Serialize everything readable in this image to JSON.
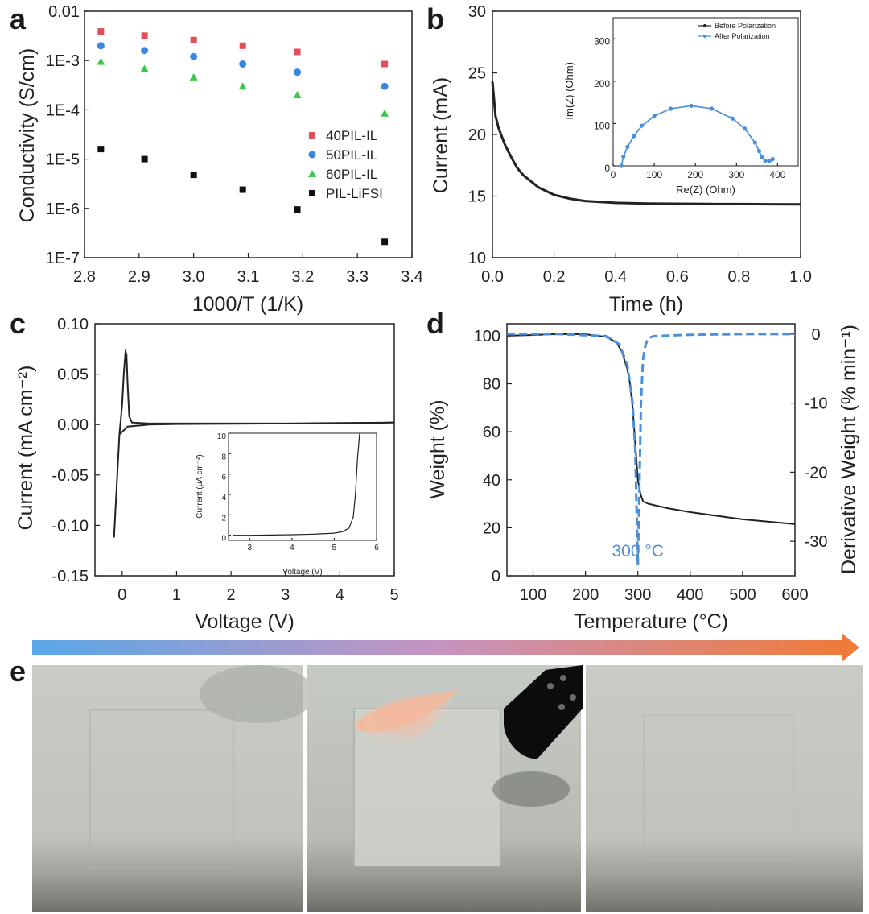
{
  "panels": {
    "a": "a",
    "b": "b",
    "c": "c",
    "d": "d",
    "e": "e"
  },
  "chart_data": [
    {
      "id": "a",
      "type": "scatter",
      "xlabel": "1000/T (1/K)",
      "ylabel": "Conductivity (S/cm)",
      "xlim": [
        2.8,
        3.4
      ],
      "ylim_log10": [
        -7,
        -2
      ],
      "yscale": "log",
      "xticks": [
        "2.8",
        "2.9",
        "3.0",
        "3.1",
        "3.2",
        "3.3",
        "3.4"
      ],
      "yticks": [
        "0.01",
        "1E-3",
        "1E-4",
        "1E-5",
        "1E-6",
        "1E-7"
      ],
      "legend_position": "right",
      "x": [
        2.83,
        2.91,
        3.0,
        3.09,
        3.19,
        3.35
      ],
      "series": [
        {
          "name": "40PIL-IL",
          "color": "#e0505a",
          "marker": "square",
          "values": [
            0.0039,
            0.0032,
            0.0026,
            0.002,
            0.0015,
            0.00085
          ]
        },
        {
          "name": "50PIL-IL",
          "color": "#3a86e0",
          "marker": "circle",
          "values": [
            0.002,
            0.0016,
            0.0012,
            0.00085,
            0.00058,
            0.0003
          ]
        },
        {
          "name": "60PIL-IL",
          "color": "#3cc84a",
          "marker": "triangle",
          "values": [
            0.00095,
            0.00068,
            0.00046,
            0.0003,
            0.0002,
            8.5e-05
          ]
        },
        {
          "name": "PIL-LiFSI",
          "color": "#111111",
          "marker": "square",
          "values": [
            1.6e-05,
            1e-05,
            4.8e-06,
            2.4e-06,
            9.5e-07,
            2.1e-07
          ]
        }
      ]
    },
    {
      "id": "b",
      "type": "line",
      "xlabel": "Time (h)",
      "ylabel": "Current (mA)",
      "xlim": [
        0,
        1.0
      ],
      "ylim": [
        10,
        30
      ],
      "xticks": [
        "0.0",
        "0.2",
        "0.4",
        "0.6",
        "0.8",
        "1.0"
      ],
      "yticks": [
        "10",
        "15",
        "20",
        "25",
        "30"
      ],
      "series": [
        {
          "name": "",
          "color": "#222222",
          "x": [
            0,
            0.01,
            0.02,
            0.04,
            0.06,
            0.08,
            0.1,
            0.15,
            0.2,
            0.25,
            0.3,
            0.4,
            0.5,
            0.6,
            0.7,
            0.8,
            0.9,
            1.0
          ],
          "values": [
            24.3,
            21.5,
            20.5,
            19.2,
            18.2,
            17.3,
            16.7,
            15.7,
            15.1,
            14.8,
            14.6,
            14.45,
            14.4,
            14.38,
            14.36,
            14.35,
            14.34,
            14.33
          ]
        }
      ],
      "inset": {
        "type": "line",
        "xlabel": "Re(Z) (Ohm)",
        "ylabel": "-Im(Z) (Ohm)",
        "xlim": [
          0,
          450
        ],
        "ylim": [
          0,
          350
        ],
        "xticks": [
          "0",
          "100",
          "200",
          "300",
          "400"
        ],
        "yticks": [
          "0",
          "100",
          "200",
          "300"
        ],
        "legend_position": "top-right",
        "series": [
          {
            "name": "Before Polarization",
            "color": "#222222",
            "x": [
              20,
              25,
              35,
              50,
              70,
              100,
              140,
              190,
              240,
              290,
              320,
              345,
              355,
              362,
              370,
              380,
              388
            ],
            "values": [
              0,
              22,
              45,
              70,
              95,
              118,
              135,
              142,
              135,
              112,
              88,
              55,
              35,
              20,
              12,
              12,
              16
            ]
          },
          {
            "name": "After Polarization",
            "color": "#4a90d9",
            "x": [
              20,
              25,
              35,
              50,
              70,
              100,
              140,
              190,
              240,
              290,
              320,
              345,
              355,
              362,
              370,
              380,
              388
            ],
            "values": [
              0,
              22,
              45,
              70,
              95,
              118,
              135,
              142,
              135,
              112,
              88,
              55,
              35,
              20,
              12,
              12,
              16
            ]
          }
        ]
      }
    },
    {
      "id": "c",
      "type": "line",
      "xlabel": "Voltage (V)",
      "ylabel": "Current (mA cm⁻²)",
      "xlim": [
        -0.5,
        5.0
      ],
      "ylim": [
        -0.15,
        0.1
      ],
      "xticks": [
        "0",
        "1",
        "2",
        "3",
        "4",
        "5"
      ],
      "yticks": [
        "0.10",
        "0.05",
        "0.00",
        "-0.05",
        "-0.10",
        "-0.15"
      ],
      "series": [
        {
          "name": "",
          "color": "#222222",
          "x": [
            -0.15,
            -0.05,
            0.0,
            0.03,
            0.06,
            0.08,
            0.1,
            0.13,
            0.18,
            0.5,
            1,
            2,
            3,
            4,
            5,
            4,
            3,
            2,
            1,
            0.5,
            0.1,
            -0.05,
            -0.15
          ],
          "values": [
            -0.112,
            -0.01,
            0.02,
            0.05,
            0.072,
            0.07,
            0.04,
            0.008,
            0.002,
            0.001,
            0.001,
            0.001,
            0.001,
            0.001,
            0.002,
            0.0015,
            0.001,
            0.0008,
            0.0005,
            0.0,
            -0.002,
            -0.01,
            -0.112
          ]
        }
      ],
      "inset": {
        "type": "line",
        "xlabel": "Voltage (V)",
        "ylabel": "Current (μA cm⁻²)",
        "xlim": [
          2.5,
          6
        ],
        "ylim": [
          -0.5,
          10
        ],
        "xticks": [
          "3",
          "4",
          "5",
          "6"
        ],
        "yticks": [
          "0",
          "2",
          "4",
          "6",
          "8",
          "10"
        ],
        "series": [
          {
            "name": "",
            "color": "#222222",
            "x": [
              2.6,
              3.0,
              3.5,
              4.0,
              4.5,
              5.0,
              5.2,
              5.35,
              5.45,
              5.5,
              5.55,
              5.6
            ],
            "values": [
              0.0,
              0.0,
              0.02,
              0.05,
              0.1,
              0.2,
              0.35,
              0.7,
              1.8,
              4.0,
              7.5,
              10
            ]
          }
        ]
      }
    },
    {
      "id": "d",
      "type": "line",
      "xlabel": "Temperature (°C)",
      "ylabel": "Weight (%)",
      "y2label": "Derivative Weight (% min⁻¹)",
      "xlim": [
        50,
        600
      ],
      "ylim": [
        0,
        105
      ],
      "y2lim": [
        -35,
        1.5
      ],
      "xticks": [
        "100",
        "200",
        "300",
        "400",
        "500",
        "600"
      ],
      "yticks": [
        "0",
        "20",
        "40",
        "60",
        "80",
        "100"
      ],
      "y2ticks": [
        "0",
        "-10",
        "-20",
        "-30"
      ],
      "annotation": "300 °C",
      "series": [
        {
          "name": "",
          "color": "#222222",
          "axis": "left",
          "x": [
            50,
            100,
            150,
            200,
            240,
            260,
            270,
            280,
            285,
            290,
            295,
            300,
            305,
            310,
            320,
            340,
            360,
            400,
            450,
            500,
            550,
            600
          ],
          "values": [
            100,
            100.3,
            100.7,
            100.6,
            99.5,
            97,
            93,
            86,
            80,
            70,
            55,
            40,
            34,
            31,
            30,
            29,
            28,
            26.5,
            25,
            23.5,
            22.5,
            21.5
          ]
        },
        {
          "name": "",
          "color": "#4a90d9",
          "axis": "right",
          "dashed": true,
          "x": [
            50,
            150,
            240,
            265,
            280,
            290,
            295,
            300,
            303,
            306,
            310,
            315,
            320,
            330,
            360,
            400,
            500,
            600
          ],
          "values": [
            0,
            0,
            -0.3,
            -1.5,
            -4.5,
            -10,
            -17,
            -33.5,
            -22,
            -10,
            -3.5,
            -1.5,
            -0.6,
            -0.3,
            -0.2,
            -0.1,
            0,
            0
          ]
        }
      ]
    }
  ]
}
